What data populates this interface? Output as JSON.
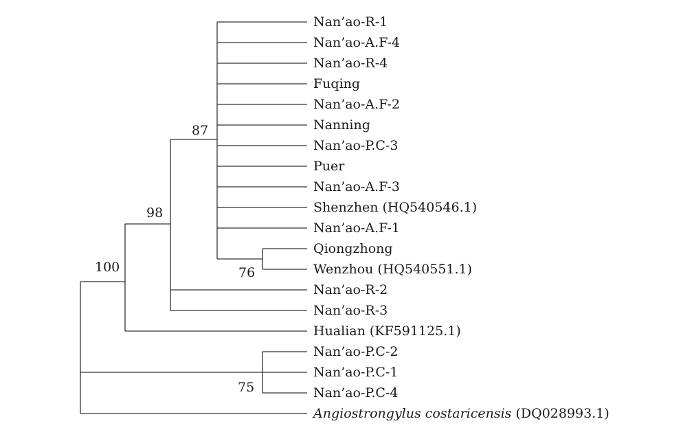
{
  "tree": {
    "leaves": [
      {
        "id": "L1",
        "label": "Nan’ao-R-1"
      },
      {
        "id": "L2",
        "label": "Nan’ao-A.F-4"
      },
      {
        "id": "L3",
        "label": "Nan’ao-R-4"
      },
      {
        "id": "L4",
        "label": "Fuqing"
      },
      {
        "id": "L5",
        "label": "Nan’ao-A.F-2"
      },
      {
        "id": "L6",
        "label": "Nanning"
      },
      {
        "id": "L7",
        "label": "Nan’ao-P.C-3"
      },
      {
        "id": "L8",
        "label": "Puer"
      },
      {
        "id": "L9",
        "label": "Nan’ao-A.F-3"
      },
      {
        "id": "L10",
        "label": "Shenzhen (HQ540546.1)"
      },
      {
        "id": "L11",
        "label": "Nan’ao-A.F-1"
      },
      {
        "id": "L12",
        "label": "Qiongzhong"
      },
      {
        "id": "L13",
        "label": "Wenzhou (HQ540551.1)"
      },
      {
        "id": "L14",
        "label": "Nan’ao-R-2"
      },
      {
        "id": "L15",
        "label": "Nan’ao-R-3"
      },
      {
        "id": "L16",
        "label": "Hualian (KF591125.1)"
      },
      {
        "id": "L17",
        "label": "Nan’ao-P.C-2"
      },
      {
        "id": "L18",
        "label": "Nan’ao-P.C-1"
      },
      {
        "id": "L19",
        "label": "Nan’ao-P.C-4"
      },
      {
        "id": "L20",
        "label_italic": "Angiostrongylus costaricensis",
        "label_rest": " (DQ028993.1)"
      }
    ],
    "bootstrap": {
      "root": "100",
      "clade_98": "98",
      "clade_87": "87",
      "clade_76": "76",
      "clade_75": "75"
    }
  }
}
